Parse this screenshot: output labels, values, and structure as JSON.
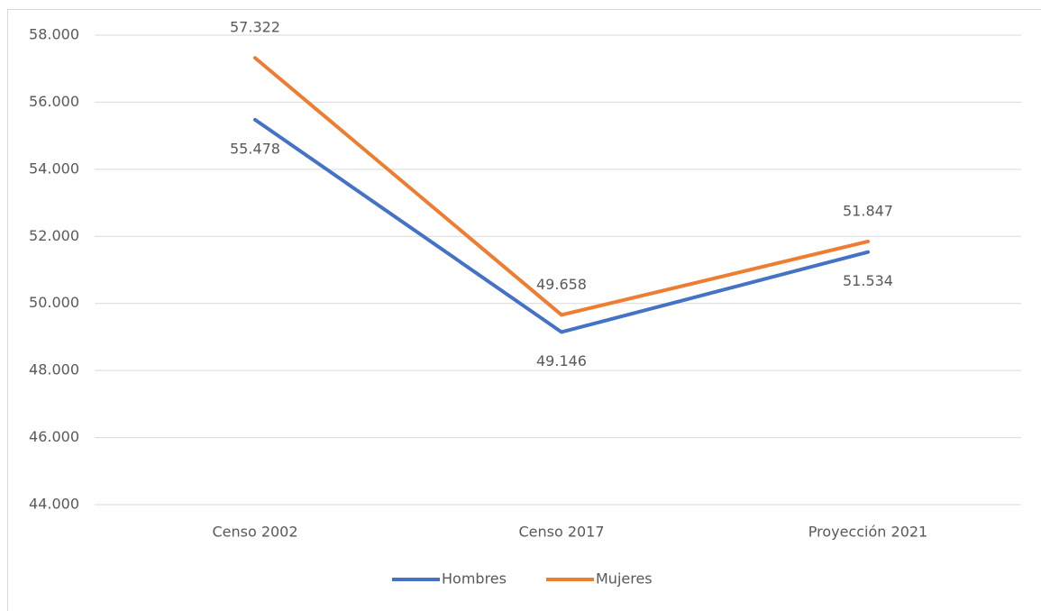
{
  "chart_data": {
    "type": "line",
    "categories": [
      "Censo 2002",
      "Censo 2017",
      "Proyección 2021"
    ],
    "series": [
      {
        "name": "Hombres",
        "color": "#4472c4",
        "values": [
          55478,
          49146,
          51534
        ],
        "value_labels": [
          "55.478",
          "49.146",
          "51.534"
        ]
      },
      {
        "name": "Mujeres",
        "color": "#ed7d31",
        "values": [
          57322,
          49658,
          51847
        ],
        "value_labels": [
          "57.322",
          "49.658",
          "51.847"
        ]
      }
    ],
    "ylim": [
      44000,
      58000
    ],
    "yticks": [
      {
        "value": 44000,
        "label": "44.000"
      },
      {
        "value": 46000,
        "label": "46.000"
      },
      {
        "value": 48000,
        "label": "48.000"
      },
      {
        "value": 50000,
        "label": "50.000"
      },
      {
        "value": 52000,
        "label": "52.000"
      },
      {
        "value": 54000,
        "label": "54.000"
      },
      {
        "value": 56000,
        "label": "56.000"
      },
      {
        "value": 58000,
        "label": "58.000"
      }
    ],
    "grid": true,
    "legend": "bottom"
  }
}
